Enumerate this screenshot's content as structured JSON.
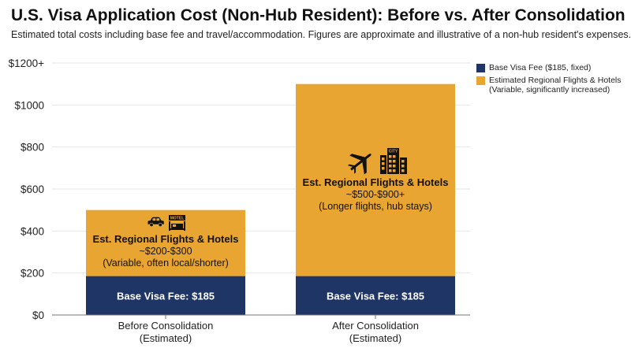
{
  "colors": {
    "base": "#1f3566",
    "travel": "#e8a531",
    "axis": "#777777",
    "grid": "#e6e6e6",
    "icon": "#111111"
  },
  "chart_data": {
    "type": "bar",
    "stacked": true,
    "title": "U.S. Visa Application Cost (Non-Hub Resident): Before vs. After Consolidation",
    "subtitle": "Estimated total costs including base fee and travel/accommodation. Figures are approximate and illustrative of a non-hub resident's expenses.",
    "categories": [
      {
        "line1": "Before Consolidation",
        "line2": "(Estimated)"
      },
      {
        "line1": "After Consolidation",
        "line2": "(Estimated)"
      }
    ],
    "series": [
      {
        "key": "base",
        "name": "Base Visa Fee ($185, fixed)",
        "values": [
          185,
          185
        ],
        "labels": [
          "Base Visa Fee: $185",
          "Base Visa Fee: $185"
        ]
      },
      {
        "key": "travel",
        "name": "Estimated Regional Flights & Hotels",
        "name_sub": "(Variable, significantly increased)",
        "values": [
          315,
          915
        ]
      }
    ],
    "yticks": [
      "$0",
      "$200",
      "$400",
      "$600",
      "$800",
      "$1000",
      "$1200+"
    ],
    "ylim": [
      0,
      1200
    ],
    "grid": true,
    "legend_position": "top-right",
    "annotations": [
      {
        "bar": 0,
        "icons": [
          "car-icon",
          "motel-icon"
        ],
        "motel_text": "MOTEL",
        "heading": "Est. Regional Flights & Hotels",
        "range": "~$200-$300",
        "note": "(Variable, often local/shorter)"
      },
      {
        "bar": 1,
        "icons": [
          "airplane-icon",
          "city-buildings-icon"
        ],
        "city_text": "CITY",
        "heading": "Est. Regional Flights & Hotels",
        "range": "~$500-$900+",
        "note": "(Longer flights, hub stays)"
      }
    ]
  }
}
